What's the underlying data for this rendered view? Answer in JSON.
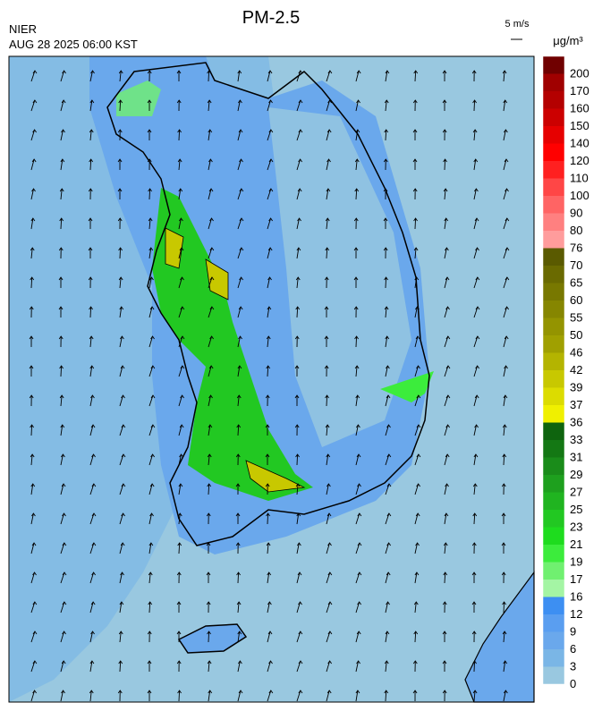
{
  "header": {
    "title": "PM-2.5",
    "agency": "NIER",
    "timestamp": "AUG 28 2025 06:00 KST",
    "wind_scale": "5 m/s",
    "unit": "μg/m³"
  },
  "colorbar": {
    "ticks": [
      0,
      3,
      6,
      9,
      12,
      16,
      17,
      19,
      21,
      23,
      25,
      27,
      29,
      31,
      33,
      36,
      37,
      39,
      42,
      46,
      50,
      55,
      60,
      65,
      70,
      76,
      80,
      90,
      100,
      110,
      120,
      140,
      150,
      160,
      170,
      200
    ],
    "colors": [
      "#99c8e0",
      "#7ab6e6",
      "#6aa8ec",
      "#5a9ef0",
      "#3d8ff2",
      "#a4f5a4",
      "#70f070",
      "#3cec3c",
      "#1edc1e",
      "#22c822",
      "#20b420",
      "#1ea01e",
      "#1a8c1a",
      "#147814",
      "#0e640e",
      "#f0f000",
      "#dcdc00",
      "#c8c800",
      "#b4b400",
      "#a0a000",
      "#949400",
      "#868600",
      "#787800",
      "#6a6a00",
      "#5a5a00",
      "#ff9c9c",
      "#ff8080",
      "#ff6464",
      "#ff4646",
      "#ff2020",
      "#ff0000",
      "#e60000",
      "#cc0000",
      "#b40000",
      "#a00000",
      "#700000"
    ]
  }
}
